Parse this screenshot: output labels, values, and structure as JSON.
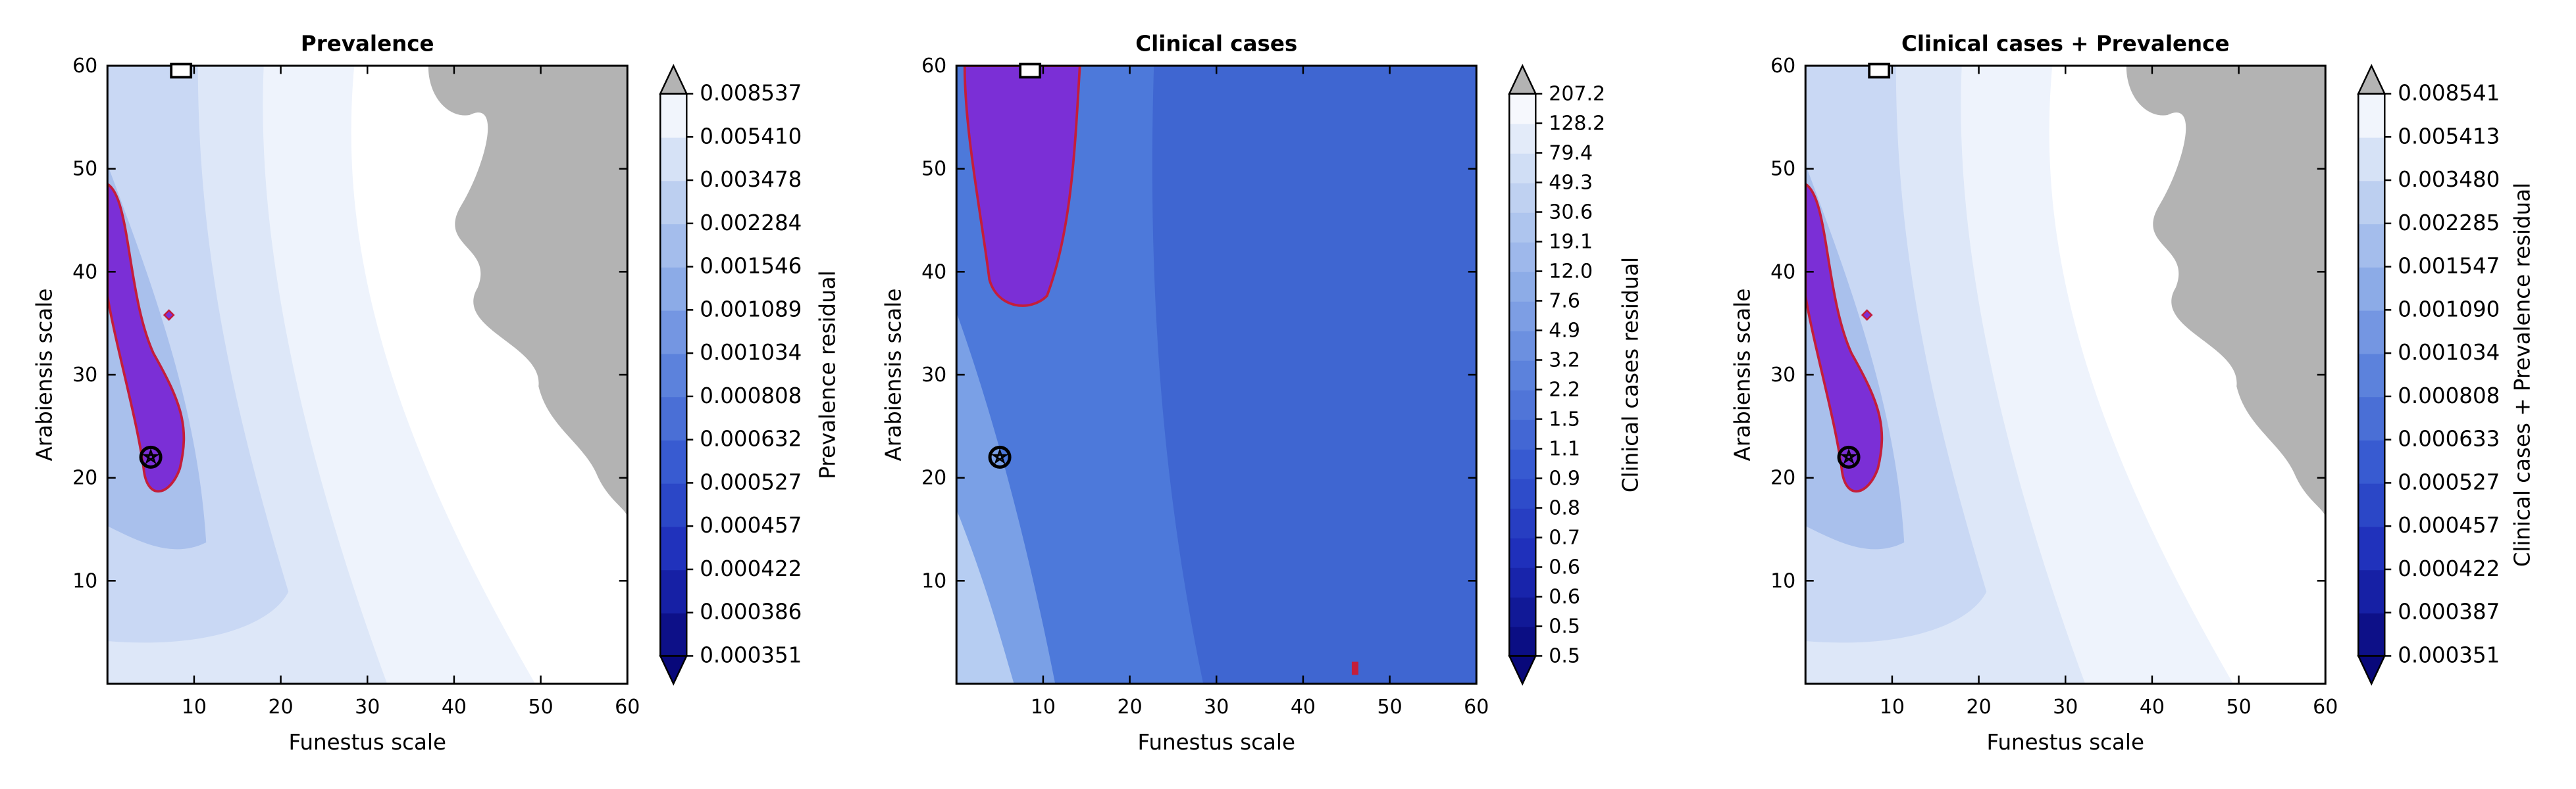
{
  "colors": {
    "background": "#ffffff",
    "contour_light": "#ffffff",
    "contour_dark": "#08087a",
    "region_fill": "#7b2fd6",
    "region_outline": "#c41e3a",
    "masked_region": "#b3b3b3",
    "cb_over": "#b3b3b3"
  },
  "chart_data": [
    {
      "type": "contour",
      "title": "Prevalence",
      "xlabel": "Funestus scale",
      "ylabel": "Arabiensis scale",
      "xlim": [
        0,
        60
      ],
      "ylim": [
        0,
        60
      ],
      "xticks": [
        10,
        20,
        30,
        40,
        50,
        60
      ],
      "yticks": [
        10,
        20,
        30,
        40,
        50,
        60
      ],
      "colorbar": {
        "label": "Prevalence residual",
        "levels": [
          "0.000351",
          "0.000386",
          "0.000422",
          "0.000457",
          "0.000527",
          "0.000632",
          "0.000808",
          "0.001034",
          "0.001089",
          "0.001546",
          "0.002284",
          "0.003478",
          "0.005410",
          "0.008537"
        ],
        "extend": "both"
      },
      "optimum_marker": {
        "x": 5,
        "y": 22
      },
      "square_marker": {
        "x": 8.5,
        "y": 60
      }
    },
    {
      "type": "contour",
      "title": "Clinical cases",
      "xlabel": "Funestus scale",
      "ylabel": "Arabiensis scale",
      "xlim": [
        0,
        60
      ],
      "ylim": [
        0,
        60
      ],
      "xticks": [
        10,
        20,
        30,
        40,
        50,
        60
      ],
      "yticks": [
        10,
        20,
        30,
        40,
        50,
        60
      ],
      "colorbar": {
        "label": "Clinical cases residual",
        "levels": [
          "0.5",
          "0.5",
          "0.6",
          "0.6",
          "0.7",
          "0.8",
          "0.9",
          "1.1",
          "1.5",
          "2.2",
          "3.2",
          "4.9",
          "7.6",
          "12.0",
          "19.1",
          "30.6",
          "49.3",
          "79.4",
          "128.2",
          "207.2"
        ],
        "extend": "both"
      },
      "optimum_marker": {
        "x": 5,
        "y": 22
      },
      "square_marker": {
        "x": 8.5,
        "y": 60
      }
    },
    {
      "type": "contour",
      "title": "Clinical cases + Prevalence",
      "xlabel": "Funestus scale",
      "ylabel": "Arabiensis scale",
      "xlim": [
        0,
        60
      ],
      "ylim": [
        0,
        60
      ],
      "xticks": [
        10,
        20,
        30,
        40,
        50,
        60
      ],
      "yticks": [
        10,
        20,
        30,
        40,
        50,
        60
      ],
      "colorbar": {
        "label": "Clinical cases + Prevalence residual",
        "levels": [
          "0.000351",
          "0.000387",
          "0.000422",
          "0.000457",
          "0.000527",
          "0.000633",
          "0.000808",
          "0.001034",
          "0.001090",
          "0.001547",
          "0.002285",
          "0.003480",
          "0.005413",
          "0.008541"
        ],
        "extend": "both"
      },
      "optimum_marker": {
        "x": 5,
        "y": 22
      },
      "square_marker": {
        "x": 8.5,
        "y": 60
      }
    }
  ]
}
